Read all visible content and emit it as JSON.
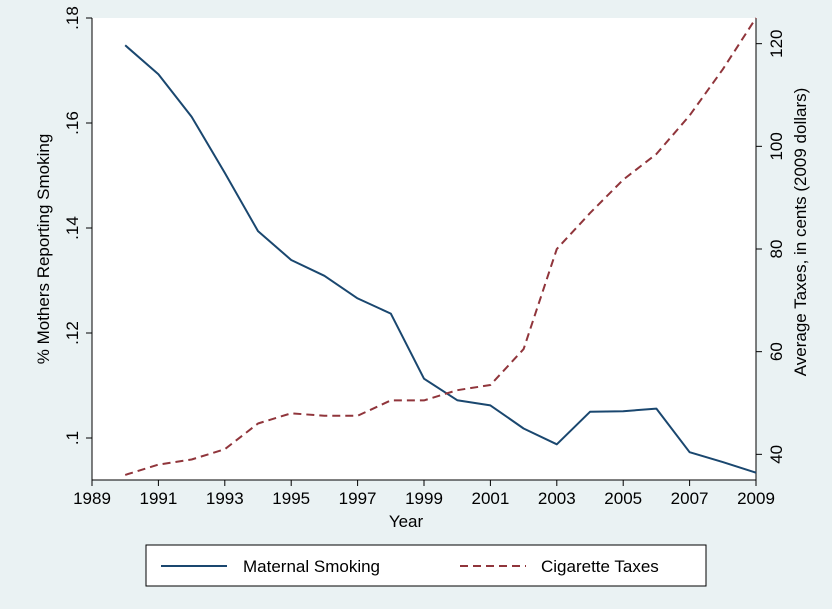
{
  "chart_data": {
    "type": "line",
    "xlabel": "Year",
    "ylabel_left": "% Mothers Reporting Smoking",
    "ylabel_right": "Average Taxes, in cents (2009 dollars)",
    "xlim": [
      1989,
      2009
    ],
    "ylim_left": [
      0.092,
      0.18
    ],
    "ylim_right": [
      35,
      125
    ],
    "x_ticks": [
      1989,
      1991,
      1993,
      1995,
      1997,
      1999,
      2001,
      2003,
      2005,
      2007,
      2009
    ],
    "x_tick_labels": [
      "1989",
      "1991",
      "1993",
      "1995",
      "1997",
      "1999",
      "2001",
      "2003",
      "2005",
      "2007",
      "2009"
    ],
    "y_left_ticks": [
      0.1,
      0.12,
      0.14,
      0.16,
      0.18
    ],
    "y_left_tick_labels": [
      ".1",
      ".12",
      ".14",
      ".16",
      ".18"
    ],
    "y_right_ticks": [
      40,
      60,
      80,
      100,
      120
    ],
    "y_right_tick_labels": [
      "40",
      "60",
      "80",
      "100",
      "120"
    ],
    "grid": false,
    "legend_position": "bottom",
    "series": [
      {
        "name": "Maternal Smoking",
        "axis": "left",
        "color": "#1a476f",
        "dash": "solid",
        "x": [
          1990,
          1991,
          1992,
          1993,
          1994,
          1995,
          1996,
          1997,
          1998,
          1999,
          2000,
          2001,
          2002,
          2003,
          2004,
          2005,
          2006,
          2007,
          2008,
          2009
        ],
        "values": [
          0.1748,
          0.1693,
          0.1612,
          0.1505,
          0.1394,
          0.1339,
          0.1309,
          0.1266,
          0.1237,
          0.1113,
          0.1072,
          0.1062,
          0.1018,
          0.0988,
          0.105,
          0.1051,
          0.1056,
          0.0973,
          0.0954,
          0.0934
        ]
      },
      {
        "name": "Cigarette Taxes",
        "axis": "right",
        "color": "#90353b",
        "dash": "dashed",
        "x": [
          1990,
          1991,
          1992,
          1993,
          1994,
          1995,
          1996,
          1997,
          1998,
          1999,
          2000,
          2001,
          2002,
          2003,
          2004,
          2005,
          2006,
          2007,
          2008,
          2009
        ],
        "values": [
          36,
          38,
          39,
          41,
          46,
          48,
          47.5,
          47.5,
          50.5,
          50.5,
          52.5,
          53.5,
          60.5,
          80,
          87,
          93.5,
          98.5,
          106,
          115,
          125
        ]
      }
    ]
  }
}
